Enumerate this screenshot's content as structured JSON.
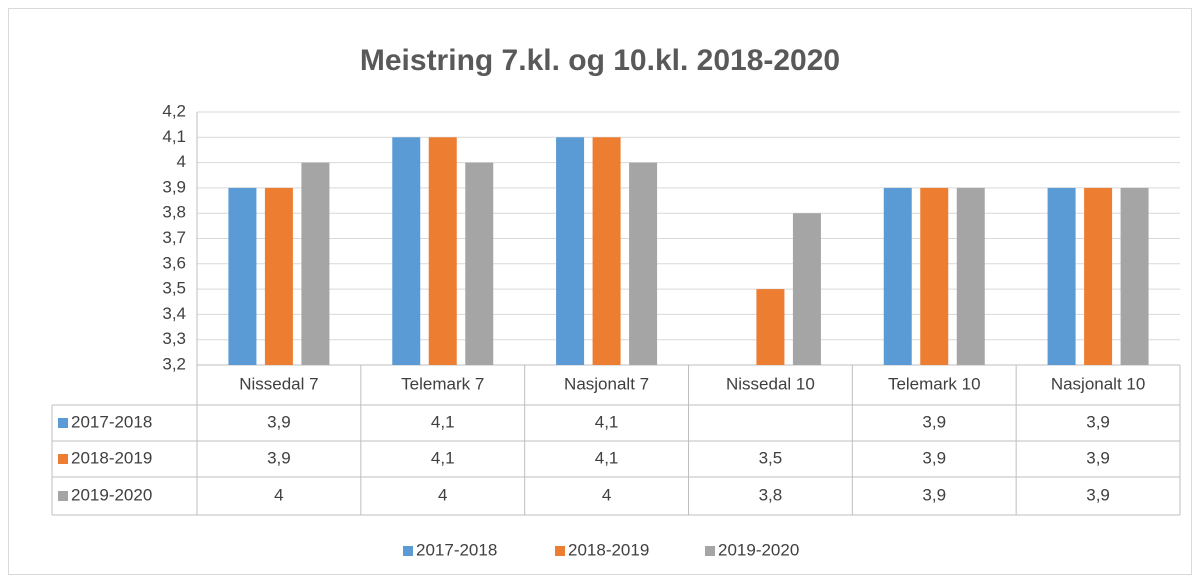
{
  "chart_data": {
    "type": "bar",
    "title": "Meistring 7.kl. og 10.kl. 2018-2020",
    "categories": [
      "Nissedal 7",
      "Telemark 7",
      "Nasjonalt 7",
      "Nissedal 10",
      "Telemark 10",
      "Nasjonalt 10"
    ],
    "series": [
      {
        "name": "2017-2018",
        "color": "#5b9bd5",
        "values": [
          3.9,
          4.1,
          4.1,
          null,
          3.9,
          3.9
        ],
        "value_labels": [
          "3,9",
          "4,1",
          "4,1",
          null,
          "3,9",
          "3,9"
        ]
      },
      {
        "name": "2018-2019",
        "color": "#ed7d31",
        "values": [
          3.9,
          4.1,
          4.1,
          3.5,
          3.9,
          3.9
        ],
        "value_labels": [
          "3,9",
          "4,1",
          "4,1",
          "3,5",
          "3,9",
          "3,9"
        ]
      },
      {
        "name": "2019-2020",
        "color": "#a5a5a5",
        "values": [
          4,
          4,
          4,
          3.8,
          3.9,
          3.9
        ],
        "value_labels": [
          "4",
          "4",
          "4",
          "3,8",
          "3,9",
          "3,9"
        ]
      }
    ],
    "ylim": [
      3.2,
      4.2
    ],
    "yticks": [
      {
        "value": 3.2,
        "label": "3,2"
      },
      {
        "value": 3.3,
        "label": "3,3"
      },
      {
        "value": 3.4,
        "label": "3,4"
      },
      {
        "value": 3.5,
        "label": "3,5"
      },
      {
        "value": 3.6,
        "label": "3,6"
      },
      {
        "value": 3.7,
        "label": "3,7"
      },
      {
        "value": 3.8,
        "label": "3,8"
      },
      {
        "value": 3.9,
        "label": "3,9"
      },
      4,
      {
        "value": 4.1,
        "label": "4,1"
      },
      {
        "value": 4.2,
        "label": "4,2"
      }
    ],
    "grid": true,
    "legend": "bottom",
    "data_table": true
  }
}
